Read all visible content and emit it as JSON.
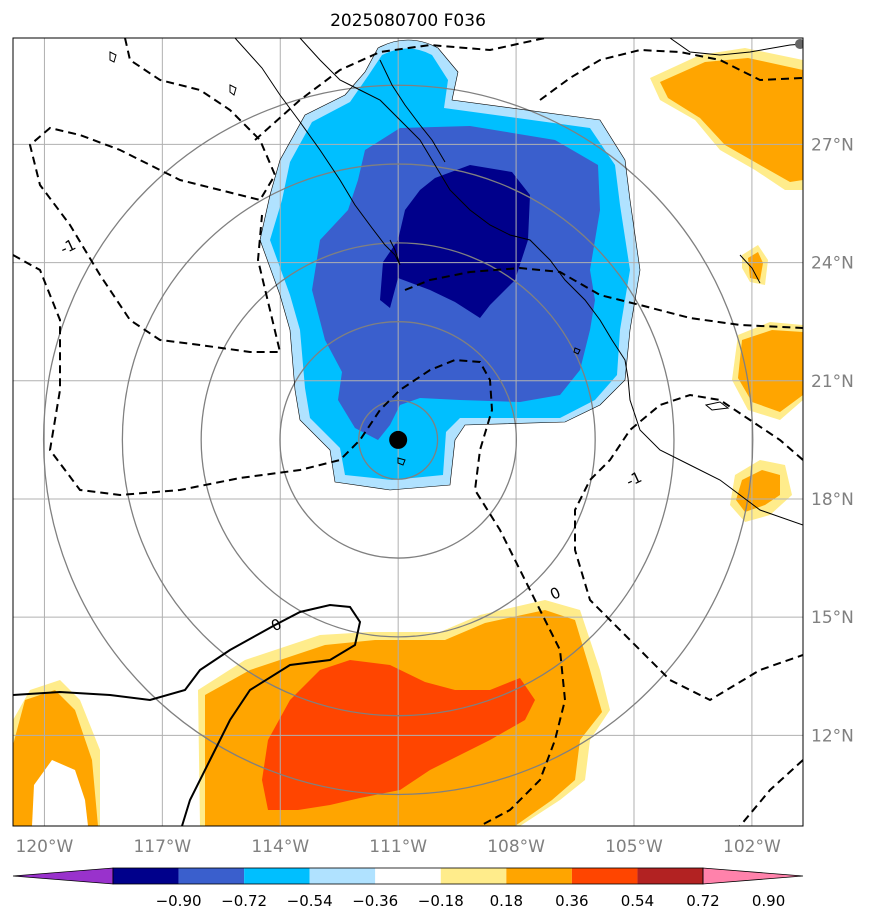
{
  "title": "2025080700 F036",
  "chart_data": {
    "type": "contour-map",
    "title": "2025080700 F036",
    "x_axis": {
      "ticks": [
        {
          "value": -120,
          "label": "120°W"
        },
        {
          "value": -117,
          "label": "117°W"
        },
        {
          "value": -114,
          "label": "114°W"
        },
        {
          "value": -111,
          "label": "111°W"
        },
        {
          "value": -108,
          "label": "108°W"
        },
        {
          "value": -105,
          "label": "105°W"
        },
        {
          "value": -102,
          "label": "102°W"
        }
      ],
      "range": [
        -120.8,
        -100.7
      ]
    },
    "y_axis": {
      "ticks": [
        {
          "value": 12,
          "label": "12°N"
        },
        {
          "value": 15,
          "label": "15°N"
        },
        {
          "value": 18,
          "label": "18°N"
        },
        {
          "value": 21,
          "label": "21°N"
        },
        {
          "value": 24,
          "label": "24°N"
        },
        {
          "value": 27,
          "label": "27°N"
        }
      ],
      "range": [
        9.7,
        29.7
      ],
      "side": "right"
    },
    "grid": true,
    "center_marker": {
      "lon": -111.0,
      "lat": 19.5
    },
    "range_rings_deg": [
      1,
      3,
      5,
      7,
      9
    ],
    "contour_labels": [
      {
        "text": "0",
        "lon": -114.1,
        "lat": 14.8
      },
      {
        "text": "0",
        "lon": -107.0,
        "lat": 15.6
      },
      {
        "text": "-1",
        "lon": -119.4,
        "lat": 24.4
      },
      {
        "text": "-1",
        "lon": -105.0,
        "lat": 18.5
      }
    ],
    "colorbar": {
      "colors": [
        "#9932cc",
        "#00008b",
        "#3a5fcd",
        "#00bfff",
        "#b0e2ff",
        "#ffffff",
        "#ffec8b",
        "#ffa500",
        "#ff4500",
        "#b22222",
        "#ff82ab"
      ],
      "tick_values": [
        -0.9,
        -0.72,
        -0.54,
        -0.36,
        -0.18,
        0.18,
        0.36,
        0.54,
        0.72,
        0.9
      ],
      "tick_labels": [
        "−0.90",
        "−0.72",
        "−0.54",
        "−0.36",
        "−0.18",
        "0.18",
        "0.36",
        "0.54",
        "0.72",
        "0.90"
      ],
      "extend": "both"
    }
  }
}
